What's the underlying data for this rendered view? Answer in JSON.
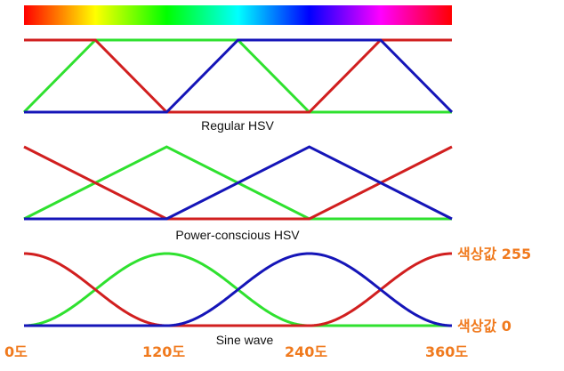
{
  "colors": {
    "red": "#d11f1f",
    "green": "#2fe12f",
    "blue": "#1515b8",
    "label_orange": "#f07a1e",
    "caption_text": "#111111"
  },
  "hue_bar": {
    "stops": [
      "#ff0000",
      "#ffff00",
      "#00ff00",
      "#00ffff",
      "#0000ff",
      "#ff00ff",
      "#ff0000"
    ]
  },
  "panels": [
    {
      "id": "regular",
      "caption": "Regular HSV",
      "curves": {
        "red": [
          [
            0,
            1
          ],
          [
            60,
            1
          ],
          [
            120,
            0
          ],
          [
            240,
            0
          ],
          [
            300,
            1
          ],
          [
            360,
            1
          ]
        ],
        "green": [
          [
            0,
            0
          ],
          [
            60,
            1
          ],
          [
            180,
            1
          ],
          [
            240,
            0
          ],
          [
            360,
            0
          ]
        ],
        "blue": [
          [
            0,
            0
          ],
          [
            120,
            0
          ],
          [
            180,
            1
          ],
          [
            300,
            1
          ],
          [
            360,
            0
          ]
        ]
      }
    },
    {
      "id": "power",
      "caption": "Power-conscious HSV",
      "curves": {
        "red": [
          [
            0,
            1
          ],
          [
            120,
            0
          ],
          [
            240,
            0
          ],
          [
            360,
            1
          ]
        ],
        "green": [
          [
            0,
            0
          ],
          [
            120,
            1
          ],
          [
            240,
            0
          ],
          [
            360,
            0
          ]
        ],
        "blue": [
          [
            0,
            0
          ],
          [
            120,
            0
          ],
          [
            240,
            1
          ],
          [
            360,
            0
          ]
        ]
      }
    },
    {
      "id": "sine",
      "caption": "Sine wave"
    }
  ],
  "labels": {
    "max": "색상값 255",
    "min": "색상값 0",
    "deg0": "0도",
    "deg120": "120도",
    "deg240": "240도",
    "deg360": "360도"
  }
}
